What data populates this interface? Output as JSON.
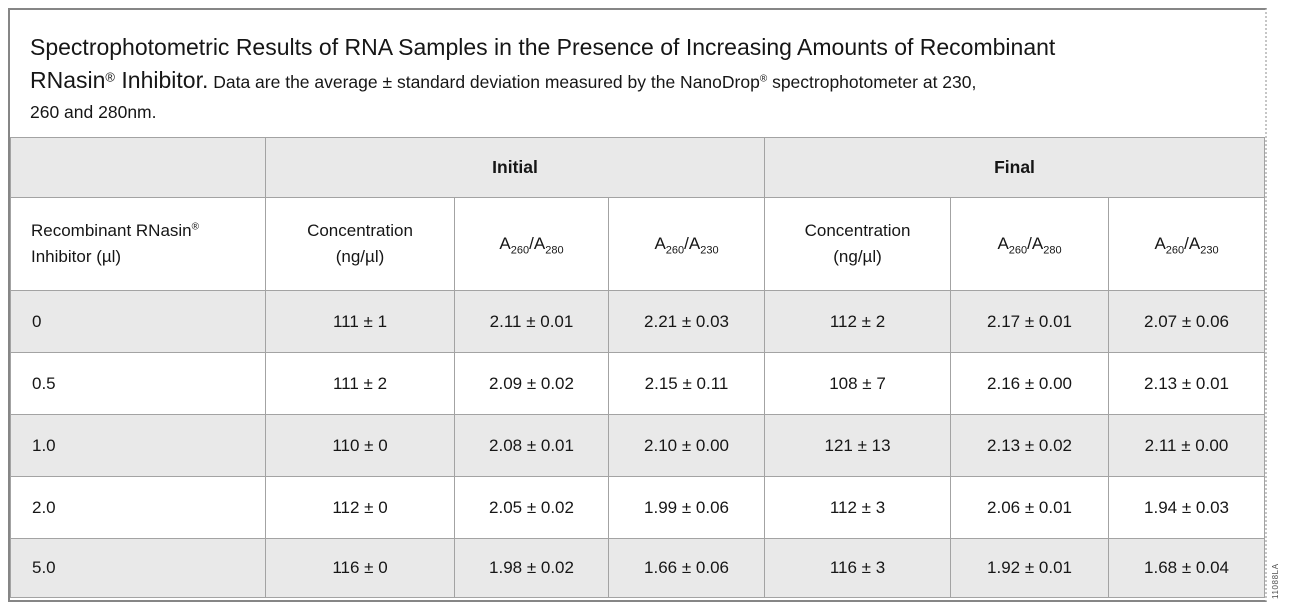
{
  "caption": {
    "title_line1": "Spectrophotometric Results of RNA Samples in the Presence of Increasing Amounts of Recombinant",
    "title_line2_start": "RNasin",
    "reg_mark": "®",
    "title_line2_end": " Inhibitor.",
    "note_start": " Data are the average ± standard deviation measured by the NanoDrop",
    "note_end": " spectrophotometer at 230,",
    "note_line3": "260 and 280nm."
  },
  "table": {
    "groups": [
      "Initial",
      "Final"
    ],
    "headers": {
      "inhibitor_line1": "Recombinant RNasin",
      "reg_mark": "®",
      "inhibitor_line2": "Inhibitor (µl)",
      "concentration_line1": "Concentration",
      "concentration_line2": "(ng/µl)",
      "ratio_280": {
        "a1": "A",
        "s1": "260",
        "sep": "/",
        "a2": "A",
        "s2": "280"
      },
      "ratio_230": {
        "a1": "A",
        "s1": "260",
        "sep": "/",
        "a2": "A",
        "s2": "230"
      }
    },
    "rows": [
      {
        "cells": [
          "0",
          "111 ± 1",
          "2.11 ± 0.01",
          "2.21 ± 0.03",
          "112 ± 2",
          "2.17 ± 0.01",
          "2.07 ± 0.06"
        ]
      },
      {
        "cells": [
          "0.5",
          "111 ± 2",
          "2.09 ± 0.02",
          "2.15 ± 0.11",
          "108 ± 7",
          "2.16 ± 0.00",
          "2.13 ± 0.01"
        ]
      },
      {
        "cells": [
          "1.0",
          "110 ± 0",
          "2.08 ± 0.01",
          "2.10 ± 0.00",
          "121 ± 13",
          "2.13 ± 0.02",
          "2.11 ± 0.00"
        ]
      },
      {
        "cells": [
          "2.0",
          "112 ± 0",
          "2.05 ± 0.02",
          "1.99 ± 0.06",
          "112 ± 3",
          "2.06 ± 0.01",
          "1.94 ± 0.03"
        ]
      },
      {
        "cells": [
          "5.0",
          "116 ± 0",
          "1.98 ± 0.02",
          "1.66 ± 0.06",
          "116 ± 3",
          "1.92 ± 0.01",
          "1.68 ± 0.04"
        ]
      }
    ]
  },
  "watermark": "11088LA",
  "colors": {
    "shade": "#e9e9e9",
    "cell_border": "#a3a3a3",
    "frame_border": "#868686",
    "text": "#161616"
  },
  "chart_data": {
    "type": "table",
    "title": "Spectrophotometric Results of RNA Samples in the Presence of Increasing Amounts of Recombinant RNasin® Inhibitor",
    "subtitle": "Data are the average ± standard deviation measured by the NanoDrop® spectrophotometer at 230, 260 and 280nm.",
    "column_groups": [
      {
        "label": "",
        "span": 1
      },
      {
        "label": "Initial",
        "span": 3
      },
      {
        "label": "Final",
        "span": 3
      }
    ],
    "columns": [
      "Recombinant RNasin® Inhibitor (µl)",
      "Concentration (ng/µl)",
      "A260/A280",
      "A260/A230",
      "Concentration (ng/µl)",
      "A260/A280",
      "A260/A230"
    ],
    "rows": [
      [
        "0",
        "111 ± 1",
        "2.11 ± 0.01",
        "2.21 ± 0.03",
        "112 ± 2",
        "2.17 ± 0.01",
        "2.07 ± 0.06"
      ],
      [
        "0.5",
        "111 ± 2",
        "2.09 ± 0.02",
        "2.15 ± 0.11",
        "108 ± 7",
        "2.16 ± 0.00",
        "2.13 ± 0.01"
      ],
      [
        "1.0",
        "110 ± 0",
        "2.08 ± 0.01",
        "2.10 ± 0.00",
        "121 ± 13",
        "2.13 ± 0.02",
        "2.11 ± 0.00"
      ],
      [
        "2.0",
        "112 ± 0",
        "2.05 ± 0.02",
        "1.99 ± 0.06",
        "112 ± 3",
        "2.06 ± 0.01",
        "1.94 ± 0.03"
      ],
      [
        "5.0",
        "116 ± 0",
        "1.98 ± 0.02",
        "1.66 ± 0.06",
        "116 ± 3",
        "1.92 ± 0.01",
        "1.68 ± 0.04"
      ]
    ]
  }
}
